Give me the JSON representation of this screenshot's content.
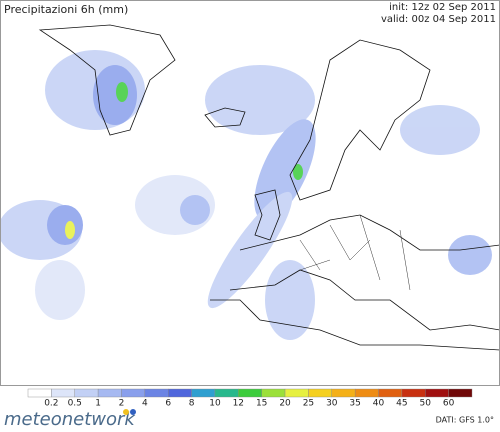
{
  "header": {
    "title": "Precipitazioni 6h (mm)",
    "init": "init: 12z 02 Sep 2011",
    "valid": "valid: 00z 04 Sep 2011"
  },
  "legend": {
    "labels": [
      0.2,
      0.5,
      1,
      2,
      4,
      6,
      8,
      10,
      12,
      15,
      20,
      25,
      30,
      35,
      40,
      45,
      50,
      60
    ],
    "colors": [
      "#ffffff",
      "#dde5f9",
      "#c2d0f5",
      "#a6b9f1",
      "#899fec",
      "#6b84e4",
      "#4f66dc",
      "#2f9fd0",
      "#28b88c",
      "#3ccc3c",
      "#9be03a",
      "#e6f040",
      "#f5d020",
      "#f4b018",
      "#ee8c14",
      "#e06010",
      "#c83010",
      "#a01010",
      "#700808"
    ]
  },
  "footer": {
    "logo": "meteonetwork",
    "source": "DATI: GFS 1.0°"
  }
}
